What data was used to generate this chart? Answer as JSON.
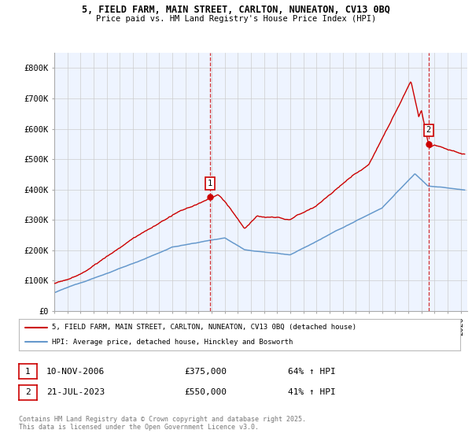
{
  "title_line1": "5, FIELD FARM, MAIN STREET, CARLTON, NUNEATON, CV13 0BQ",
  "title_line2": "Price paid vs. HM Land Registry's House Price Index (HPI)",
  "background_color": "#ffffff",
  "grid_color": "#cccccc",
  "red_line_color": "#cc0000",
  "blue_line_color": "#6699cc",
  "blue_fill_color": "#ddeeff",
  "sale1_year": 2006.87,
  "sale1_price": 375000,
  "sale2_year": 2023.55,
  "sale2_price": 550000,
  "legend_line1": "5, FIELD FARM, MAIN STREET, CARLTON, NUNEATON, CV13 0BQ (detached house)",
  "legend_line2": "HPI: Average price, detached house, Hinckley and Bosworth",
  "annotation1_date": "10-NOV-2006",
  "annotation1_price": "£375,000",
  "annotation1_hpi": "64% ↑ HPI",
  "annotation2_date": "21-JUL-2023",
  "annotation2_price": "£550,000",
  "annotation2_hpi": "41% ↑ HPI",
  "footer": "Contains HM Land Registry data © Crown copyright and database right 2025.\nThis data is licensed under the Open Government Licence v3.0.",
  "ytick_labels": [
    "£0",
    "£100K",
    "£200K",
    "£300K",
    "£400K",
    "£500K",
    "£600K",
    "£700K",
    "£800K"
  ],
  "ytick_values": [
    0,
    100000,
    200000,
    300000,
    400000,
    500000,
    600000,
    700000,
    800000
  ],
  "ylim": [
    0,
    850000
  ],
  "xlim_start": 1995.0,
  "xlim_end": 2026.5
}
